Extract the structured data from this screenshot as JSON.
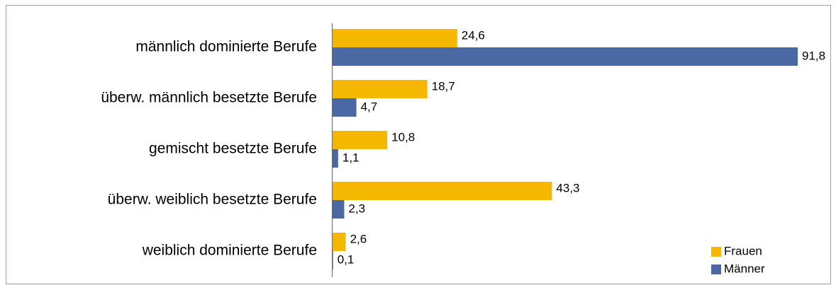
{
  "chart_data": {
    "type": "bar",
    "orientation": "horizontal",
    "categories": [
      "männlich dominierte Berufe",
      "überw. männlich besetzte Berufe",
      "gemischt besetzte Berufe",
      "überw. weiblich besetzte Berufe",
      "weiblich dominierte Berufe"
    ],
    "series": [
      {
        "name": "Frauen",
        "color": "#f5b800",
        "values": [
          24.6,
          18.7,
          10.8,
          43.3,
          2.6
        ],
        "value_labels": [
          "24,6",
          "18,7",
          "10,8",
          "43,3",
          "2,6"
        ]
      },
      {
        "name": "Männer",
        "color": "#4a68a3",
        "values": [
          91.8,
          4.7,
          1.1,
          2.3,
          0.1
        ],
        "value_labels": [
          "91,8",
          "4,7",
          "1,1",
          "2,3",
          "0,1"
        ]
      }
    ],
    "legend": "bottom-right"
  }
}
